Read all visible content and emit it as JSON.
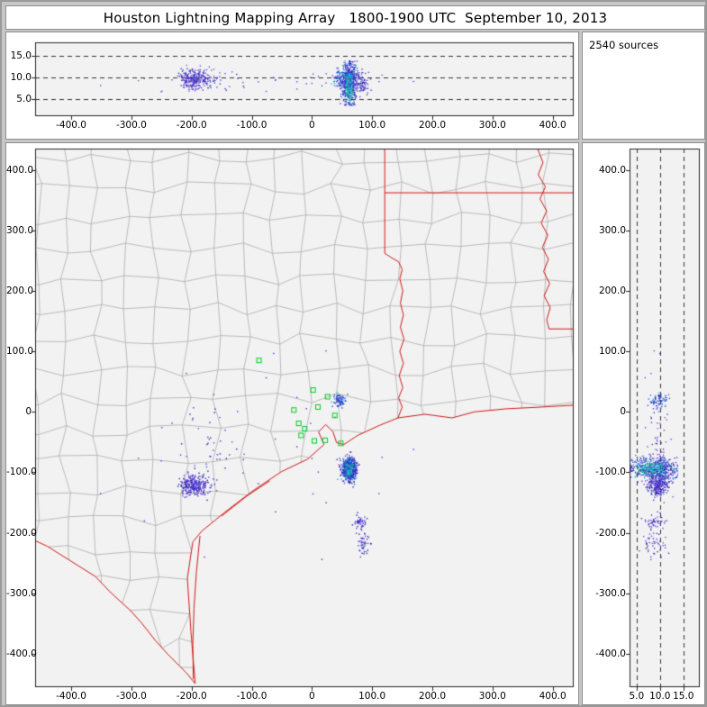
{
  "window": {
    "title": "Houston Lightning Mapping Array   1800-1900 UTC  September 10, 2013",
    "sources_label": "2540 sources"
  },
  "colors": {
    "page_bg": "#c6c6c6",
    "card_bg": "#ffffff",
    "plot_bg": "#f2f2f2",
    "card_border": "#8f8f8f",
    "plot_frame": "#222222",
    "grid_dash": "#333333",
    "county_line": "#a8a8a8",
    "state_border": "#d01818",
    "station_green": "#00cc22",
    "tick_text": "#000000",
    "palettes": {
      "blue_purple": [
        "#2a2ec6",
        "#3b3bd8",
        "#5533cc",
        "#7a3fd4",
        "#2222a8"
      ],
      "blue_cyan": [
        "#2a3fd0",
        "#2a3fd0",
        "#2233bb",
        "#3b3bd8",
        "#19b9cf"
      ],
      "purple": [
        "#6a35cc",
        "#3b3bd8",
        "#5533cc"
      ],
      "core_cyan": [
        "#14b8d0",
        "#14b8d0",
        "#19c9a0",
        "#2fbf3a",
        "#3377ee",
        "#14b8d0"
      ],
      "core_outer": [
        "#2a2ec6",
        "#3b3bd8",
        "#2233bb",
        "#6a35cc",
        "#2a2ec6",
        "#14b8d0"
      ]
    }
  },
  "chart_data": {
    "type": "scatter",
    "title": "Houston Lightning Mapping Array 1800-1900 UTC September 10, 2013",
    "total_sources": 2540,
    "panels": [
      {
        "id": "ew-altitude",
        "x": "ew_km",
        "y": "alt_km",
        "xlim": [
          -460,
          435
        ],
        "ylim": [
          1.2,
          18
        ],
        "xticks": [
          -400,
          -300,
          -200,
          -100,
          0,
          100,
          200,
          300,
          400
        ],
        "xtick_labels": [
          "-400.0",
          "-300.0",
          "-200.0",
          "-100.0",
          "0",
          "100.0",
          "200.0",
          "300.0",
          "400.0"
        ],
        "yticks": [
          5,
          10,
          15
        ],
        "ytick_labels": [
          "5.0",
          "10.0",
          "15.0"
        ],
        "grid": "horizontal-dashed"
      },
      {
        "id": "plan-view",
        "x": "ew_km",
        "y": "ns_km",
        "xlim": [
          -460,
          435
        ],
        "ylim": [
          -455,
          435
        ],
        "xticks": [
          -400,
          -300,
          -200,
          -100,
          0,
          100,
          200,
          300,
          400
        ],
        "xtick_labels": [
          "-400.0",
          "-300.0",
          "-200.0",
          "-100.0",
          "0",
          "100.0",
          "200.0",
          "300.0",
          "400.0"
        ],
        "yticks": [
          400,
          300,
          200,
          100,
          0,
          -100,
          -200,
          -300,
          -400
        ],
        "ytick_labels": [
          "400.0",
          "300.0",
          "200.0",
          "100.0",
          "0",
          "-100.0",
          "-200.0",
          "-300.0",
          "-400.0"
        ],
        "grid": "none",
        "basemap": "texas-louisiana-counties"
      },
      {
        "id": "altitude-ns",
        "x": "alt_km",
        "y": "ns_km",
        "xlim": [
          3.5,
          18.5
        ],
        "ylim": [
          -455,
          435
        ],
        "xticks": [
          5,
          10,
          15
        ],
        "xtick_labels": [
          "5.0",
          "10.0",
          "15.0"
        ],
        "yticks": [
          400,
          300,
          200,
          100,
          0,
          -100,
          -200,
          -300,
          -400
        ],
        "ytick_labels": [
          "400.0",
          "300.0",
          "200.0",
          "100.0",
          "0",
          "-100.0",
          "-200.0",
          "-300.0",
          "-400.0"
        ],
        "grid": "vertical-dashed"
      }
    ],
    "clusters": [
      {
        "name": "offshore-cell-main",
        "ew": 62,
        "ns": -95,
        "alt": 8.8,
        "ew_sd": 6,
        "ns_sd": 9,
        "alt_sd": 2.4,
        "alt_min": 3.6,
        "alt_max": 13.8,
        "n": 620,
        "palette": "core_cyan"
      },
      {
        "name": "west-cell",
        "ew": -195,
        "ns": -122,
        "alt": 9.6,
        "ew_sd": 13,
        "ns_sd": 8,
        "alt_sd": 1.1,
        "alt_min": 6.5,
        "alt_max": 13.0,
        "n": 260,
        "palette": "blue_purple"
      },
      {
        "name": "west-scattered",
        "ew": -175,
        "ns": -55,
        "alt": 9.0,
        "ew_sd": 30,
        "ns_sd": 28,
        "alt_sd": 1.4,
        "alt_min": 6.0,
        "alt_max": 12.5,
        "n": 42,
        "palette": "blue_purple"
      },
      {
        "name": "inland-small-cell",
        "ew": 45,
        "ns": 20,
        "alt": 9.6,
        "ew_sd": 5,
        "ns_sd": 6,
        "alt_sd": 1.0,
        "alt_min": 6.5,
        "alt_max": 12.5,
        "n": 70,
        "palette": "blue_cyan"
      },
      {
        "name": "south-offshore-cell-1",
        "ew": 80,
        "ns": -182,
        "alt": 9.0,
        "ew_sd": 5,
        "ns_sd": 7,
        "alt_sd": 1.2,
        "alt_min": 5.5,
        "alt_max": 12.5,
        "n": 48,
        "palette": "blue_purple"
      },
      {
        "name": "south-offshore-cell-2",
        "ew": 86,
        "ns": -218,
        "alt": 8.6,
        "ew_sd": 6,
        "ns_sd": 8,
        "alt_sd": 1.4,
        "alt_min": 5.0,
        "alt_max": 12.5,
        "n": 40,
        "palette": "blue_purple"
      },
      {
        "name": "sparse-background",
        "ew": -80,
        "ns": -60,
        "alt": 9.2,
        "ew_sd": 110,
        "ns_sd": 90,
        "alt_sd": 1.2,
        "alt_min": 6.0,
        "alt_max": 12.0,
        "n": 30,
        "palette": "purple"
      }
    ],
    "stations_km": [
      [
        -88,
        85
      ],
      [
        2,
        36
      ],
      [
        26,
        25
      ],
      [
        -30,
        3
      ],
      [
        10,
        8
      ],
      [
        38,
        -6
      ],
      [
        -22,
        -19
      ],
      [
        -12,
        -28
      ],
      [
        -18,
        -39
      ],
      [
        4,
        -48
      ],
      [
        22,
        -47
      ],
      [
        48,
        -52
      ]
    ],
    "map_layers": {
      "coast": [
        [
          -194,
          -449
        ],
        [
          -201,
          -364
        ],
        [
          -207,
          -275
        ],
        [
          -198,
          -215
        ],
        [
          -183,
          -197
        ],
        [
          -141,
          -163
        ],
        [
          -96,
          -129
        ],
        [
          -51,
          -99
        ],
        [
          -7,
          -78
        ],
        [
          20,
          -54
        ],
        [
          11,
          -33
        ],
        [
          23,
          -21
        ],
        [
          35,
          -33
        ],
        [
          41,
          -51
        ],
        [
          53,
          -54
        ],
        [
          76,
          -39
        ],
        [
          113,
          -22
        ],
        [
          143,
          -10
        ],
        [
          188,
          -4
        ],
        [
          233,
          -10
        ],
        [
          270,
          0
        ],
        [
          323,
          5
        ],
        [
          383,
          8
        ],
        [
          435,
          11
        ]
      ],
      "rio_grande": [
        [
          -462,
          -212
        ],
        [
          -440,
          -222
        ],
        [
          -400,
          -247
        ],
        [
          -360,
          -272
        ],
        [
          -336,
          -297
        ],
        [
          -300,
          -330
        ],
        [
          -283,
          -349
        ],
        [
          -260,
          -378
        ],
        [
          -239,
          -401
        ],
        [
          -220,
          -420
        ],
        [
          -209,
          -431
        ],
        [
          -194,
          -449
        ]
      ],
      "sabine_tx_la": [
        [
          143,
          -10
        ],
        [
          150,
          8
        ],
        [
          144,
          23
        ],
        [
          151,
          40
        ],
        [
          145,
          60
        ],
        [
          152,
          80
        ],
        [
          146,
          100
        ],
        [
          153,
          120
        ],
        [
          147,
          140
        ],
        [
          152,
          160
        ],
        [
          147,
          180
        ],
        [
          151,
          200
        ],
        [
          146,
          220
        ],
        [
          150,
          235
        ],
        [
          144,
          248
        ],
        [
          130,
          256
        ],
        [
          121,
          262
        ],
        [
          121,
          435
        ]
      ],
      "la_ar_33n": [
        [
          121,
          362
        ],
        [
          435,
          362
        ]
      ],
      "ms_river": [
        [
          375,
          435
        ],
        [
          384,
          412
        ],
        [
          376,
          392
        ],
        [
          388,
          372
        ],
        [
          379,
          352
        ],
        [
          390,
          332
        ],
        [
          381,
          312
        ],
        [
          392,
          292
        ],
        [
          383,
          272
        ],
        [
          393,
          252
        ],
        [
          385,
          232
        ],
        [
          395,
          212
        ],
        [
          386,
          192
        ],
        [
          396,
          172
        ],
        [
          390,
          152
        ],
        [
          394,
          137
        ]
      ],
      "la_ms_31n": [
        [
          394,
          137
        ],
        [
          435,
          137
        ]
      ],
      "barrier_islands": [
        [
          [
            -186,
            -205
          ],
          [
            -192,
            -265
          ],
          [
            -196,
            -325
          ],
          [
            -198,
            -385
          ],
          [
            -197,
            -442
          ]
        ],
        [
          [
            -150,
            -172
          ],
          [
            -108,
            -139
          ],
          [
            -70,
            -114
          ]
        ]
      ]
    }
  }
}
